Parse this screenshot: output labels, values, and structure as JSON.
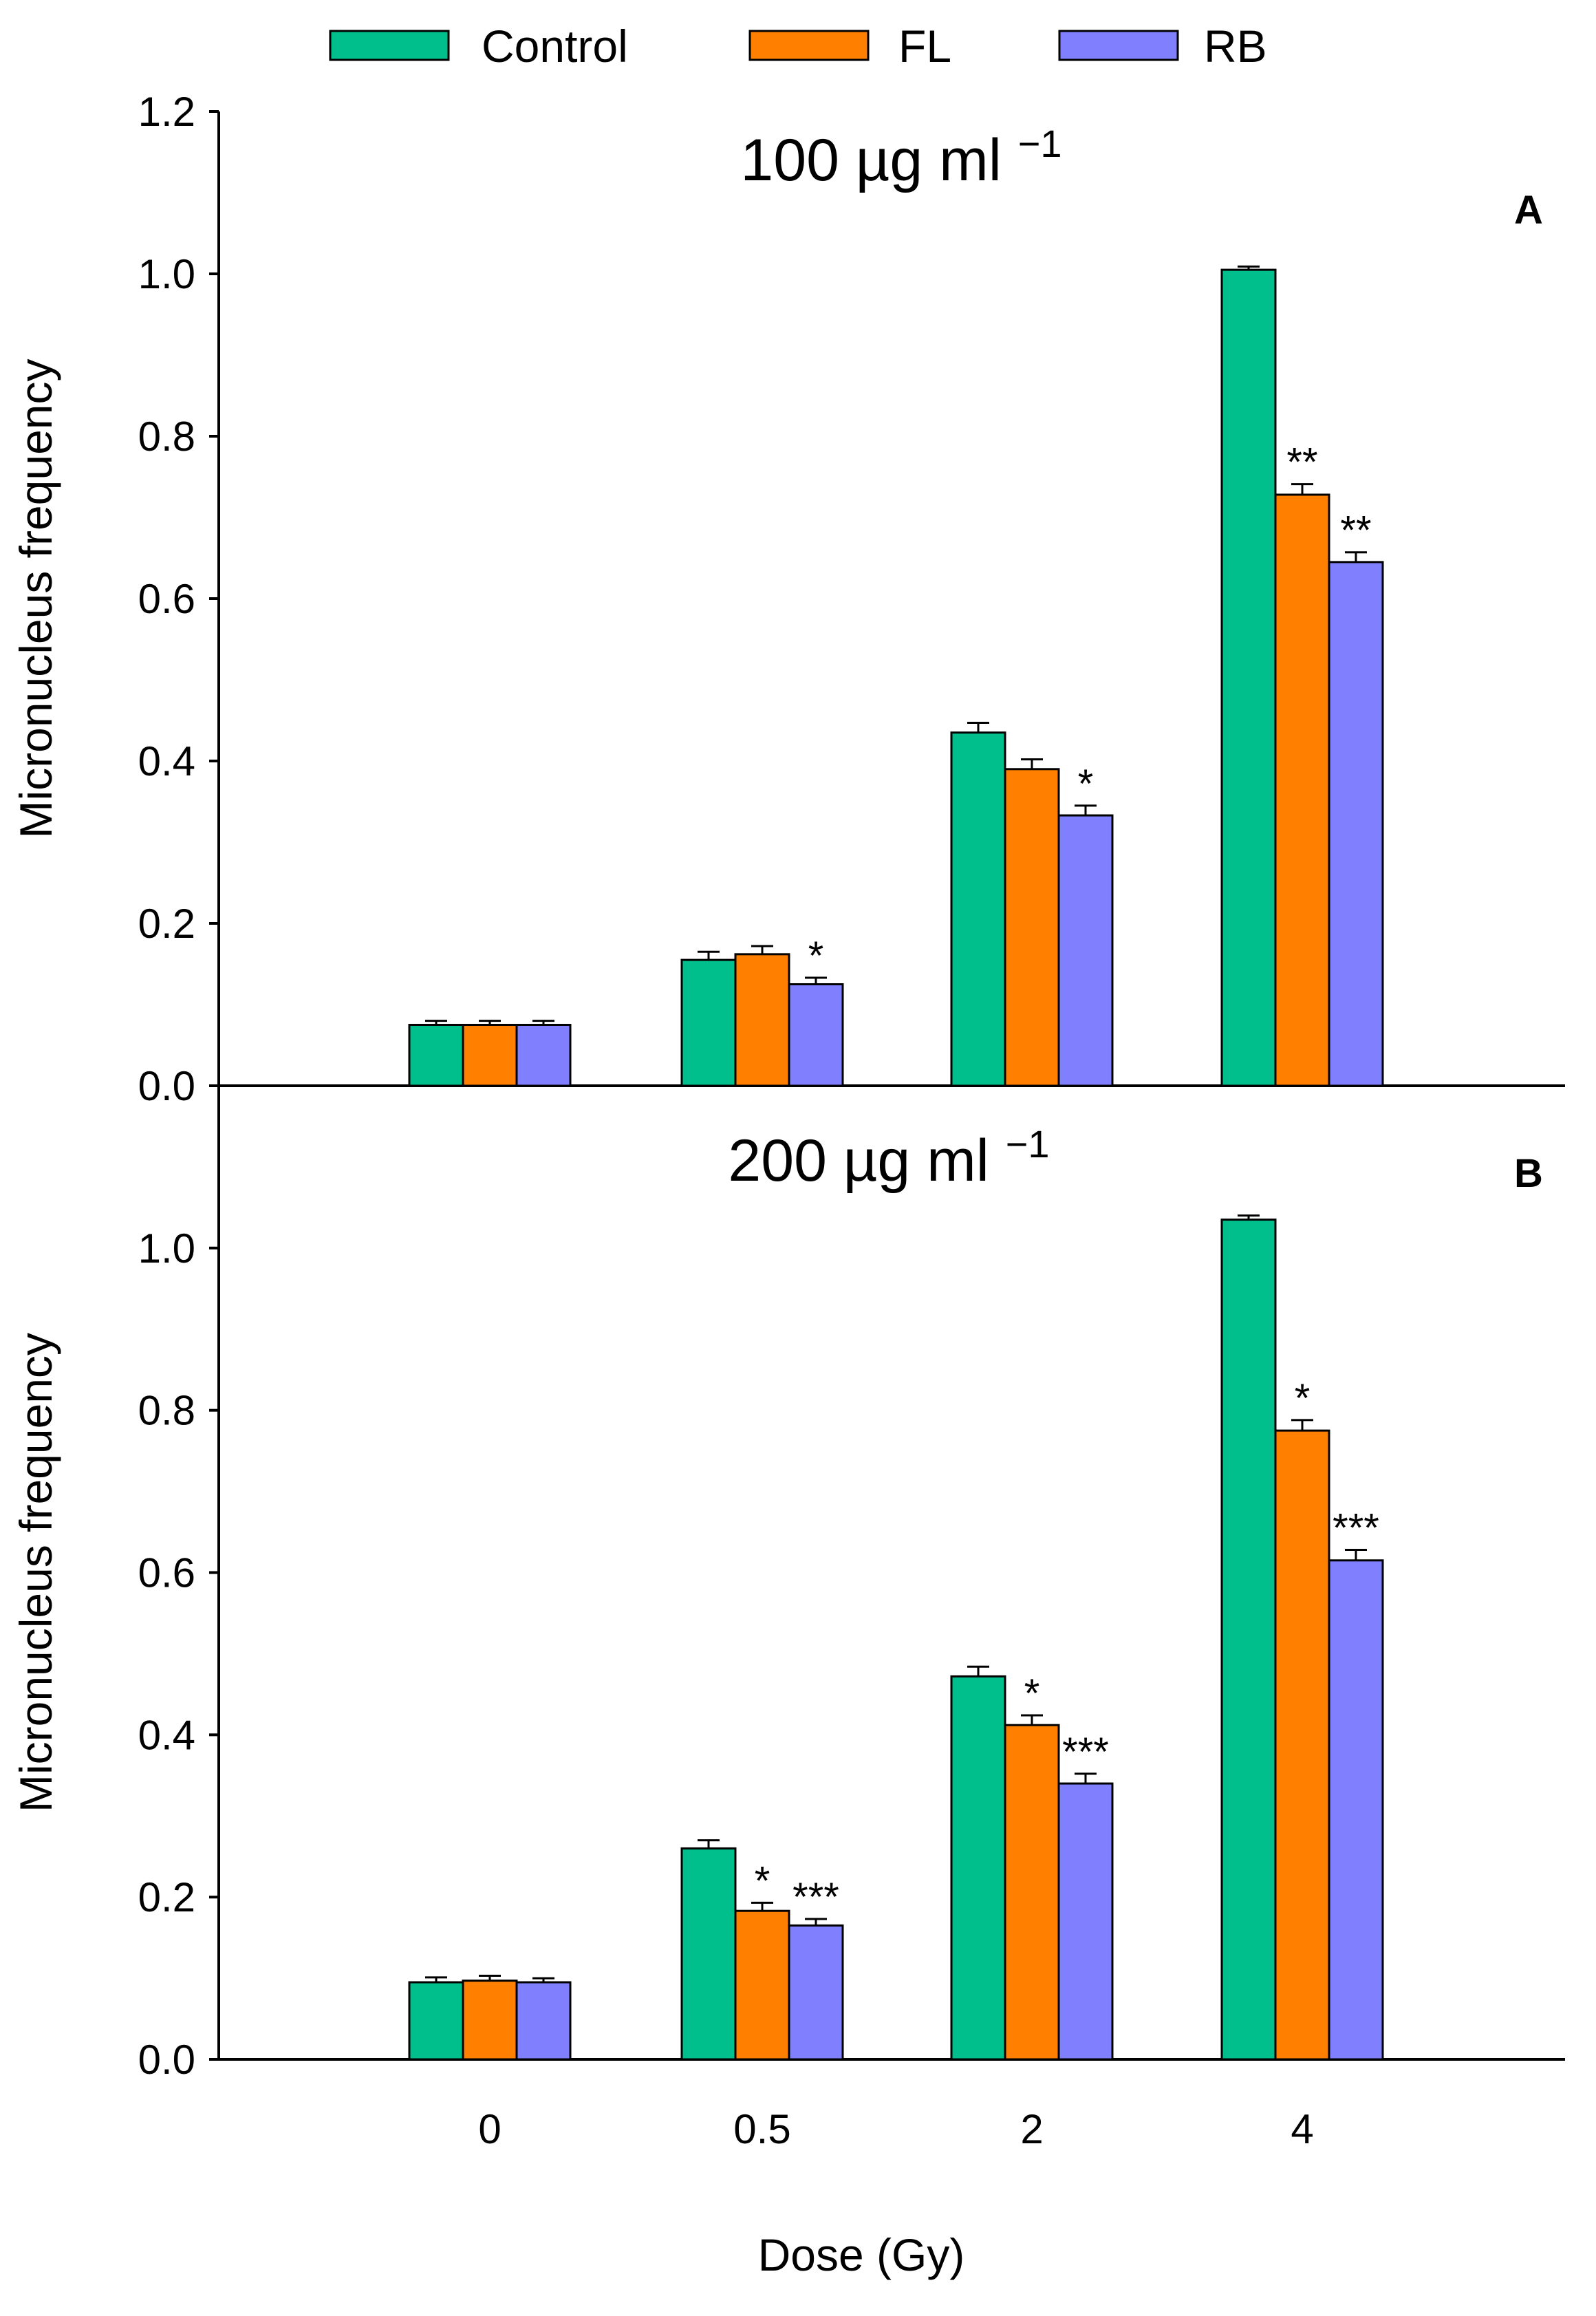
{
  "chart_data": [
    {
      "type": "bar",
      "panel": "A",
      "title": "100 µg ml",
      "title_superscript": "−1",
      "categories": [
        "0",
        "0.5",
        "2",
        "4"
      ],
      "xlabel": "Dose (Gy)",
      "ylabel": "Micronucleus frequency",
      "ylim": [
        0,
        1.2
      ],
      "yticks": [
        "0.0",
        "0.2",
        "0.4",
        "0.6",
        "0.8",
        "1.0",
        "1.2"
      ],
      "series": [
        {
          "name": "Control",
          "values": [
            0.075,
            0.155,
            0.435,
            1.005
          ],
          "errors": [
            0.005,
            0.01,
            0.012,
            0.004
          ]
        },
        {
          "name": "FL",
          "values": [
            0.075,
            0.162,
            0.39,
            0.728
          ],
          "errors": [
            0.005,
            0.01,
            0.012,
            0.013
          ]
        },
        {
          "name": "RB",
          "values": [
            0.075,
            0.125,
            0.333,
            0.645
          ],
          "errors": [
            0.005,
            0.008,
            0.012,
            0.012
          ]
        }
      ],
      "significance": [
        [
          "",
          "",
          "",
          ""
        ],
        [
          "",
          "",
          "",
          "**"
        ],
        [
          "",
          "*",
          "*",
          "**"
        ]
      ]
    },
    {
      "type": "bar",
      "panel": "B",
      "title": "200 µg ml",
      "title_superscript": "−1",
      "categories": [
        "0",
        "0.5",
        "2",
        "4"
      ],
      "xlabel": "Dose (Gy)",
      "ylabel": "Micronucleus frequency",
      "ylim": [
        0,
        1.2
      ],
      "yticks": [
        "0.0",
        "0.2",
        "0.4",
        "0.6",
        "0.8",
        "1.0"
      ],
      "series": [
        {
          "name": "Control",
          "values": [
            0.095,
            0.26,
            0.472,
            1.035
          ],
          "errors": [
            0.006,
            0.01,
            0.012,
            0.005
          ]
        },
        {
          "name": "FL",
          "values": [
            0.097,
            0.183,
            0.412,
            0.775
          ],
          "errors": [
            0.006,
            0.01,
            0.012,
            0.013
          ]
        },
        {
          "name": "RB",
          "values": [
            0.095,
            0.165,
            0.34,
            0.615
          ],
          "errors": [
            0.005,
            0.008,
            0.012,
            0.013
          ]
        }
      ],
      "significance": [
        [
          "",
          "",
          "",
          ""
        ],
        [
          "",
          "*",
          "*",
          "*"
        ],
        [
          "",
          "***",
          "***",
          "***"
        ]
      ]
    }
  ],
  "colors": {
    "Control": "#00BF8C",
    "FL": "#FF8000",
    "RB": "#8080FF"
  }
}
